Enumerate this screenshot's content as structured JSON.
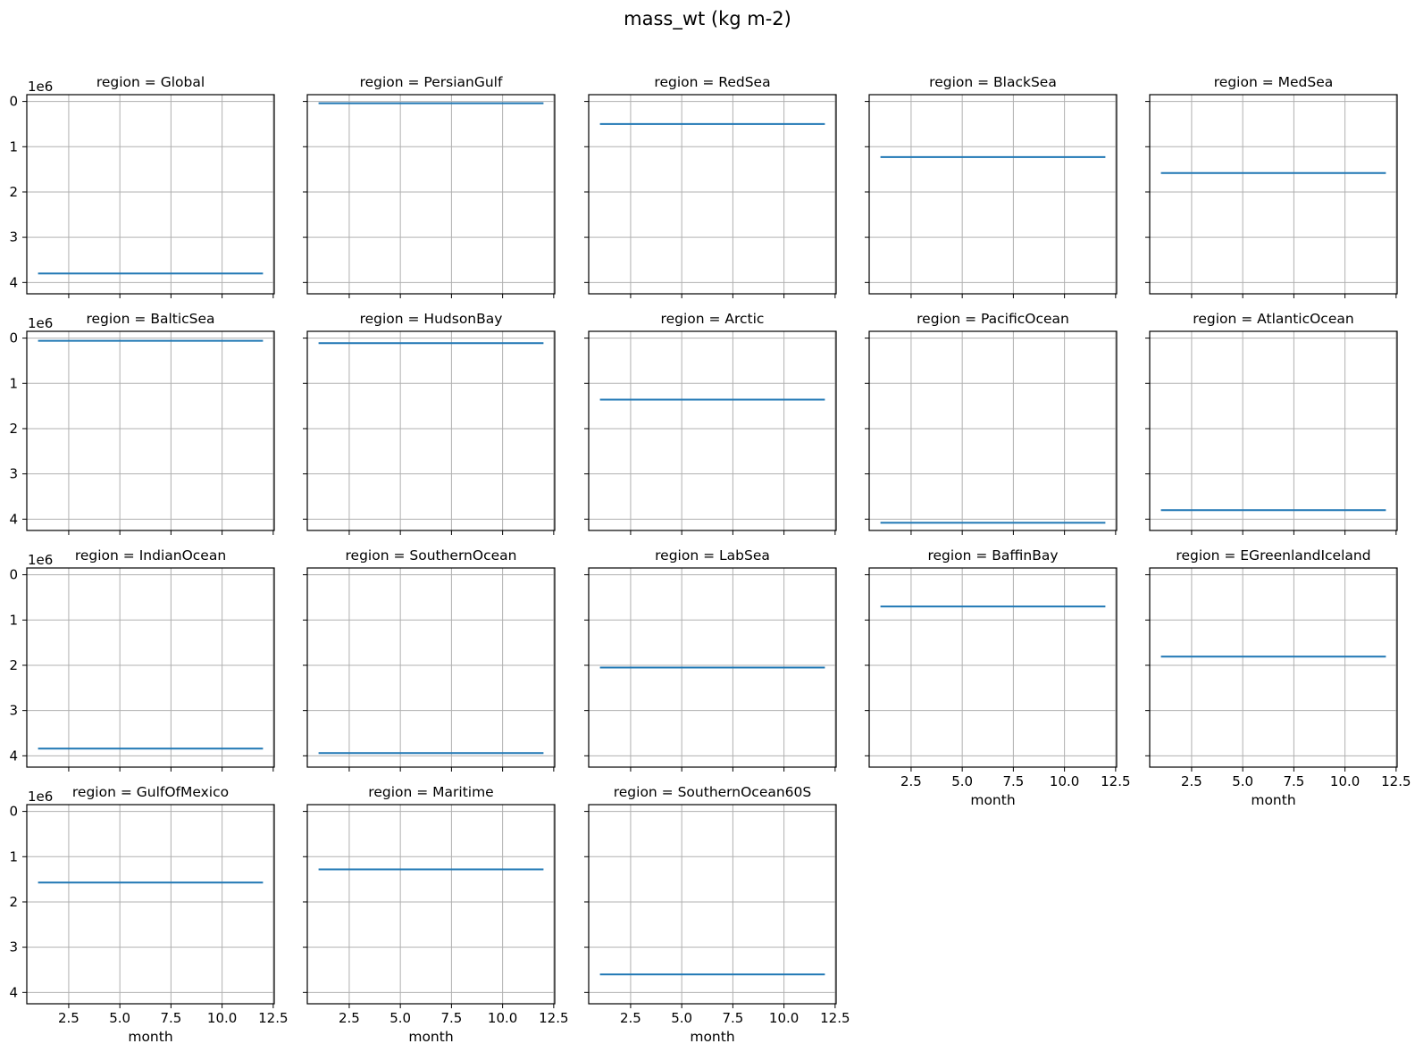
{
  "figure": {
    "title": "mass_wt (kg m-2)"
  },
  "chart_data": {
    "type": "line",
    "title": "mass_wt (kg m-2)",
    "xlabel": "month",
    "ylabel": "",
    "x": [
      1,
      2,
      3,
      4,
      5,
      6,
      7,
      8,
      9,
      10,
      11,
      12
    ],
    "xlim": [
      0.45,
      12.55
    ],
    "xticks": [
      2.5,
      5.0,
      7.5,
      10.0,
      12.5
    ],
    "xtick_labels": [
      "2.5",
      "5.0",
      "7.5",
      "10.0",
      "12.5"
    ],
    "ylim": [
      4.25,
      -0.15
    ],
    "yticks": [
      0,
      1,
      2,
      3,
      4
    ],
    "ytick_labels": [
      "0",
      "1",
      "2",
      "3",
      "4"
    ],
    "y_inverted": true,
    "y_offset_label": "1e6",
    "grid": true,
    "line_color": "#1f77b4",
    "panels": [
      {
        "title": "region = Global",
        "value": 3.8
      },
      {
        "title": "region = PersianGulf",
        "value": 0.04
      },
      {
        "title": "region = RedSea",
        "value": 0.5
      },
      {
        "title": "region = BlackSea",
        "value": 1.23
      },
      {
        "title": "region = MedSea",
        "value": 1.58
      },
      {
        "title": "region = BalticSea",
        "value": 0.06
      },
      {
        "title": "region = HudsonBay",
        "value": 0.11
      },
      {
        "title": "region = Arctic",
        "value": 1.36
      },
      {
        "title": "region = PacificOcean",
        "value": 4.08
      },
      {
        "title": "region = AtlanticOcean",
        "value": 3.8
      },
      {
        "title": "region = IndianOcean",
        "value": 3.84
      },
      {
        "title": "region = SouthernOcean",
        "value": 3.94
      },
      {
        "title": "region = LabSea",
        "value": 2.05
      },
      {
        "title": "region = BaffinBay",
        "value": 0.7
      },
      {
        "title": "region = EGreenlandIceland",
        "value": 1.81
      },
      {
        "title": "region = GulfOfMexico",
        "value": 1.57
      },
      {
        "title": "region = Maritime",
        "value": 1.28
      },
      {
        "title": "region = SouthernOcean60S",
        "value": 3.6
      }
    ]
  }
}
